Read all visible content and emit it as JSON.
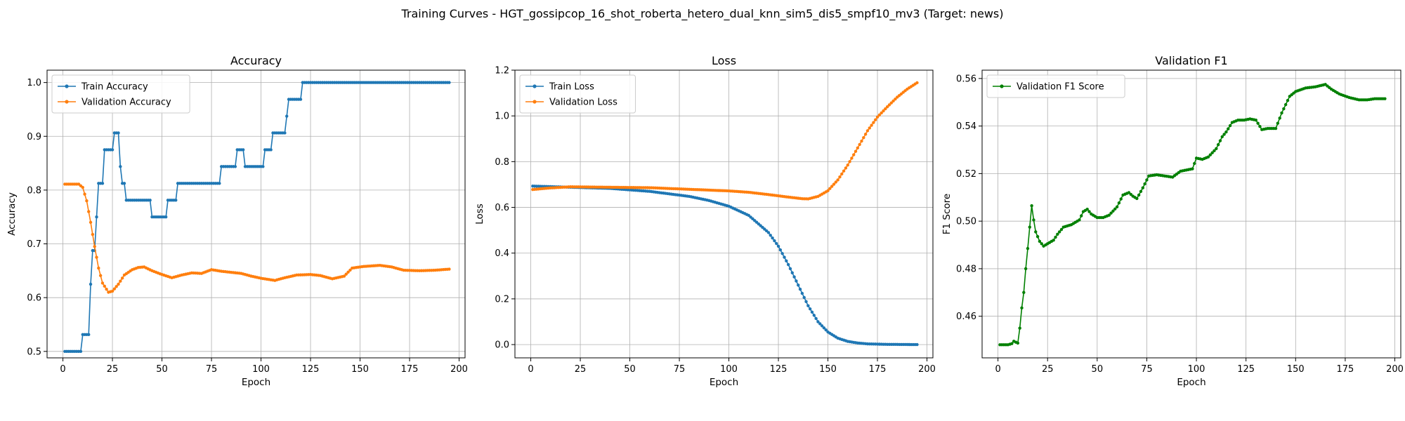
{
  "figure": {
    "title": "Training Curves - HGT_gossipcop_16_shot_roberta_hetero_dual_knn_sim5_dis5_smpf10_mv3 (Target: news)"
  },
  "chart_data": [
    {
      "type": "line",
      "title": "Accuracy",
      "xlabel": "Epoch",
      "ylabel": "Accuracy",
      "xlim": [
        -8,
        203
      ],
      "ylim": [
        0.488,
        1.023
      ],
      "xticks": [
        0,
        25,
        50,
        75,
        100,
        125,
        150,
        175,
        200
      ],
      "yticks": [
        0.5,
        0.6,
        0.7,
        0.8,
        0.9,
        1.0
      ],
      "ytick_labels": [
        "0.5",
        "0.6",
        "0.7",
        "0.8",
        "0.9",
        "1.0"
      ],
      "grid": true,
      "legend": "upper-left",
      "series": [
        {
          "name": "Train Accuracy",
          "color": "#1f77b4",
          "kind": "steps",
          "x_end": 195,
          "steps": [
            [
              1,
              0.5
            ],
            [
              10,
              0.53125
            ],
            [
              14,
              0.625
            ],
            [
              15,
              0.6875
            ],
            [
              17,
              0.75
            ],
            [
              18,
              0.8125
            ],
            [
              21,
              0.875
            ],
            [
              26,
              0.90625
            ],
            [
              29,
              0.84375
            ],
            [
              30,
              0.8125
            ],
            [
              32,
              0.78125
            ],
            [
              45,
              0.75
            ],
            [
              53,
              0.78125
            ],
            [
              58,
              0.8125
            ],
            [
              80,
              0.84375
            ],
            [
              88,
              0.875
            ],
            [
              92,
              0.84375
            ],
            [
              102,
              0.875
            ],
            [
              106,
              0.90625
            ],
            [
              113,
              0.9375
            ],
            [
              114,
              0.96875
            ],
            [
              121,
              1.0
            ]
          ]
        },
        {
          "name": "Validation Accuracy",
          "color": "#ff7f0e",
          "kind": "keypoints",
          "x_end": 195,
          "points": [
            [
              1,
              0.811
            ],
            [
              8,
              0.811
            ],
            [
              10,
              0.805
            ],
            [
              12,
              0.78
            ],
            [
              14,
              0.74
            ],
            [
              16,
              0.695
            ],
            [
              18,
              0.655
            ],
            [
              20,
              0.627
            ],
            [
              23,
              0.61
            ],
            [
              25,
              0.612
            ],
            [
              28,
              0.625
            ],
            [
              31,
              0.642
            ],
            [
              35,
              0.652
            ],
            [
              38,
              0.656
            ],
            [
              41,
              0.657
            ],
            [
              45,
              0.65
            ],
            [
              50,
              0.643
            ],
            [
              55,
              0.637
            ],
            [
              60,
              0.642
            ],
            [
              65,
              0.646
            ],
            [
              70,
              0.645
            ],
            [
              75,
              0.652
            ],
            [
              80,
              0.649
            ],
            [
              90,
              0.645
            ],
            [
              95,
              0.64
            ],
            [
              100,
              0.636
            ],
            [
              107,
              0.632
            ],
            [
              112,
              0.637
            ],
            [
              118,
              0.642
            ],
            [
              125,
              0.643
            ],
            [
              130,
              0.641
            ],
            [
              136,
              0.635
            ],
            [
              142,
              0.64
            ],
            [
              146,
              0.655
            ],
            [
              152,
              0.658
            ],
            [
              160,
              0.66
            ],
            [
              166,
              0.657
            ],
            [
              172,
              0.651
            ],
            [
              180,
              0.65
            ],
            [
              188,
              0.651
            ],
            [
              195,
              0.653
            ]
          ]
        }
      ]
    },
    {
      "type": "line",
      "title": "Loss",
      "xlabel": "Epoch",
      "ylabel": "Loss",
      "xlim": [
        -8,
        203
      ],
      "ylim": [
        -0.058,
        1.2
      ],
      "xticks": [
        0,
        25,
        50,
        75,
        100,
        125,
        150,
        175,
        200
      ],
      "yticks": [
        0.0,
        0.2,
        0.4,
        0.6,
        0.8,
        1.0,
        1.2
      ],
      "ytick_labels": [
        "0.0",
        "0.2",
        "0.4",
        "0.6",
        "0.8",
        "1.0",
        "1.2"
      ],
      "grid": true,
      "legend": "upper-left",
      "series": [
        {
          "name": "Train Loss",
          "color": "#1f77b4",
          "kind": "keypoints",
          "x_end": 195,
          "points": [
            [
              1,
              0.693
            ],
            [
              20,
              0.688
            ],
            [
              40,
              0.683
            ],
            [
              60,
              0.67
            ],
            [
              80,
              0.648
            ],
            [
              90,
              0.63
            ],
            [
              100,
              0.605
            ],
            [
              110,
              0.565
            ],
            [
              120,
              0.49
            ],
            [
              125,
              0.43
            ],
            [
              130,
              0.35
            ],
            [
              135,
              0.26
            ],
            [
              140,
              0.17
            ],
            [
              145,
              0.1
            ],
            [
              150,
              0.055
            ],
            [
              155,
              0.028
            ],
            [
              160,
              0.014
            ],
            [
              165,
              0.007
            ],
            [
              170,
              0.003
            ],
            [
              180,
              0.001
            ],
            [
              195,
              0.0
            ]
          ]
        },
        {
          "name": "Validation Loss",
          "color": "#ff7f0e",
          "kind": "keypoints",
          "x_end": 195,
          "points": [
            [
              1,
              0.678
            ],
            [
              10,
              0.685
            ],
            [
              20,
              0.69
            ],
            [
              40,
              0.688
            ],
            [
              60,
              0.686
            ],
            [
              80,
              0.679
            ],
            [
              100,
              0.672
            ],
            [
              110,
              0.666
            ],
            [
              120,
              0.656
            ],
            [
              130,
              0.645
            ],
            [
              137,
              0.638
            ],
            [
              140,
              0.637
            ],
            [
              145,
              0.648
            ],
            [
              150,
              0.673
            ],
            [
              155,
              0.72
            ],
            [
              160,
              0.785
            ],
            [
              165,
              0.86
            ],
            [
              170,
              0.935
            ],
            [
              175,
              0.995
            ],
            [
              180,
              1.04
            ],
            [
              185,
              1.082
            ],
            [
              190,
              1.117
            ],
            [
              195,
              1.145
            ]
          ]
        }
      ]
    },
    {
      "type": "line",
      "title": "Validation F1",
      "xlabel": "Epoch",
      "ylabel": "F1 Score",
      "xlim": [
        -8,
        203
      ],
      "ylim": [
        0.4425,
        0.5635
      ],
      "xticks": [
        0,
        25,
        50,
        75,
        100,
        125,
        150,
        175,
        200
      ],
      "yticks": [
        0.46,
        0.48,
        0.5,
        0.52,
        0.54,
        0.56
      ],
      "ytick_labels": [
        "0.46",
        "0.48",
        "0.50",
        "0.52",
        "0.54",
        "0.56"
      ],
      "grid": true,
      "legend": "upper-left",
      "series": [
        {
          "name": "Validation F1 Score",
          "color": "#008000",
          "kind": "keypoints",
          "x_end": 195,
          "points": [
            [
              1,
              0.448
            ],
            [
              5,
              0.448
            ],
            [
              7,
              0.4485
            ],
            [
              8,
              0.4495
            ],
            [
              10,
              0.4487
            ],
            [
              11,
              0.455
            ],
            [
              12,
              0.4635
            ],
            [
              13,
              0.47
            ],
            [
              14,
              0.48
            ],
            [
              15,
              0.4885
            ],
            [
              16,
              0.4975
            ],
            [
              17,
              0.5065
            ],
            [
              18,
              0.5005
            ],
            [
              19,
              0.4955
            ],
            [
              20,
              0.4935
            ],
            [
              21,
              0.4915
            ],
            [
              23,
              0.4895
            ],
            [
              25,
              0.4905
            ],
            [
              28,
              0.492
            ],
            [
              30,
              0.4945
            ],
            [
              33,
              0.4975
            ],
            [
              37,
              0.4985
            ],
            [
              41,
              0.5005
            ],
            [
              43,
              0.504
            ],
            [
              45,
              0.505
            ],
            [
              47,
              0.503
            ],
            [
              50,
              0.5015
            ],
            [
              53,
              0.5015
            ],
            [
              56,
              0.5025
            ],
            [
              60,
              0.506
            ],
            [
              63,
              0.511
            ],
            [
              66,
              0.512
            ],
            [
              68,
              0.5105
            ],
            [
              70,
              0.5095
            ],
            [
              73,
              0.514
            ],
            [
              76,
              0.519
            ],
            [
              80,
              0.5195
            ],
            [
              84,
              0.519
            ],
            [
              88,
              0.5185
            ],
            [
              92,
              0.521
            ],
            [
              95,
              0.5215
            ],
            [
              98,
              0.522
            ],
            [
              100,
              0.5265
            ],
            [
              103,
              0.526
            ],
            [
              106,
              0.527
            ],
            [
              110,
              0.5305
            ],
            [
              113,
              0.5355
            ],
            [
              115,
              0.5375
            ],
            [
              118,
              0.5415
            ],
            [
              121,
              0.5425
            ],
            [
              124,
              0.5425
            ],
            [
              127,
              0.543
            ],
            [
              130,
              0.5425
            ],
            [
              133,
              0.5385
            ],
            [
              136,
              0.539
            ],
            [
              140,
              0.539
            ],
            [
              143,
              0.5455
            ],
            [
              147,
              0.5525
            ],
            [
              150,
              0.5545
            ],
            [
              155,
              0.556
            ],
            [
              160,
              0.5565
            ],
            [
              165,
              0.5575
            ],
            [
              168,
              0.5555
            ],
            [
              172,
              0.5535
            ],
            [
              177,
              0.552
            ],
            [
              182,
              0.551
            ],
            [
              186,
              0.551
            ],
            [
              190,
              0.5515
            ],
            [
              195,
              0.5515
            ]
          ]
        }
      ]
    }
  ]
}
